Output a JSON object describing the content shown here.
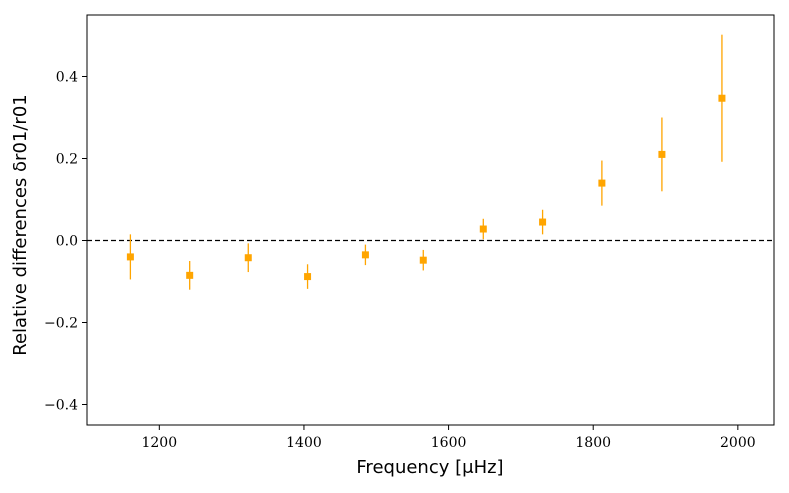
{
  "chart_data": {
    "type": "scatter",
    "title": "",
    "xlabel": "Frequency [μHz]",
    "ylabel": "Relative differences δr01/r01",
    "xlim": [
      1100,
      2050
    ],
    "ylim": [
      -0.45,
      0.55
    ],
    "x_ticks": [
      1200,
      1400,
      1600,
      1800,
      2000
    ],
    "x_tick_labels": [
      "1200",
      "1400",
      "1600",
      "1800",
      "2000"
    ],
    "y_ticks": [
      -0.4,
      -0.2,
      0.0,
      0.2,
      0.4
    ],
    "y_tick_labels": [
      "−0.4",
      "−0.2",
      "0.0",
      "0.2",
      "0.4"
    ],
    "reference_line": {
      "y": 0.0,
      "style": "dashed",
      "color": "#000000"
    },
    "grid": false,
    "legend": "none",
    "marker_color": "#FFA500",
    "series": [
      {
        "x": [
          1160,
          1242,
          1323,
          1405,
          1485,
          1565,
          1648,
          1730,
          1812,
          1895,
          1978
        ],
        "y": [
          -0.04,
          -0.085,
          -0.042,
          -0.088,
          -0.035,
          -0.048,
          0.028,
          0.045,
          0.14,
          0.21,
          0.347
        ],
        "err": [
          0.055,
          0.035,
          0.035,
          0.03,
          0.025,
          0.025,
          0.025,
          0.03,
          0.055,
          0.09,
          0.155
        ]
      }
    ]
  }
}
